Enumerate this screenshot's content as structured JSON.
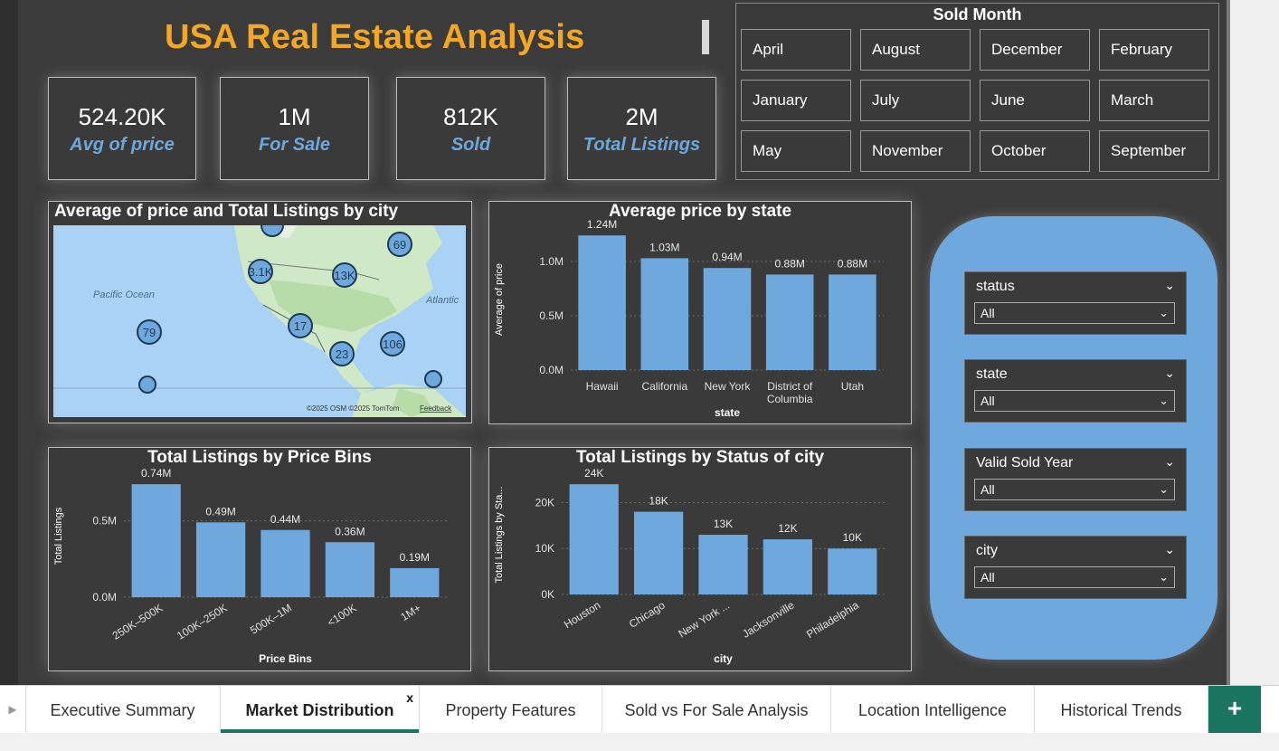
{
  "header": {
    "title": "USA Real Estate Analysis"
  },
  "kpis": [
    {
      "value": "524.20K",
      "label": "Avg of price"
    },
    {
      "value": "1M",
      "label": "For Sale"
    },
    {
      "value": "812K",
      "label": "Sold"
    },
    {
      "value": "2M",
      "label": "Total Listings"
    }
  ],
  "sold_month": {
    "title": "Sold Month",
    "months": [
      "April",
      "August",
      "December",
      "February",
      "January",
      "July",
      "June",
      "March",
      "May",
      "November",
      "October",
      "September"
    ]
  },
  "map_panel": {
    "title": "Average of price and Total Listings by city",
    "ocean_labels": [
      "Pacific Ocean",
      "Atlantic"
    ],
    "bubbles": [
      "69",
      "3.1K",
      "13K",
      "17",
      "79",
      "106",
      "23"
    ],
    "attribution": "©2025 OSM  ©2025 TomTom",
    "feedback": "Feedback"
  },
  "filters": [
    {
      "label": "status",
      "value": "All"
    },
    {
      "label": "state",
      "value": "All"
    },
    {
      "label": "Valid Sold Year",
      "value": "All"
    },
    {
      "label": "city",
      "value": "All"
    }
  ],
  "chart_data": [
    {
      "type": "bar",
      "title": "Average price by state",
      "xlabel": "state",
      "ylabel": "Average of price",
      "categories": [
        "Hawaii",
        "California",
        "New York",
        "District of Columbia",
        "Utah"
      ],
      "values": [
        1240000,
        1030000,
        940000,
        880000,
        880000
      ],
      "data_labels": [
        "1.24M",
        "1.03M",
        "0.94M",
        "0.88M",
        "0.88M"
      ],
      "yticks": [
        "0.0M",
        "0.5M",
        "1.0M"
      ],
      "ylim": [
        0,
        1300000
      ]
    },
    {
      "type": "bar",
      "title": "Total Listings by Price Bins",
      "xlabel": "Price Bins",
      "ylabel": "Total Listings",
      "categories": [
        "250K–500K",
        "100K–250K",
        "500K–1M",
        "<100K",
        "1M+"
      ],
      "values": [
        740000,
        490000,
        440000,
        360000,
        190000
      ],
      "data_labels": [
        "0.74M",
        "0.49M",
        "0.44M",
        "0.36M",
        "0.19M"
      ],
      "yticks": [
        "0.0M",
        "0.5M"
      ],
      "ylim": [
        0,
        800000
      ]
    },
    {
      "type": "bar",
      "title": "Total Listings by Status of city",
      "xlabel": "city",
      "ylabel": "Total Listings by Sta...",
      "categories": [
        "Houston",
        "Chicago",
        "New York ...",
        "Jacksonville",
        "Philadelphia"
      ],
      "values": [
        24000,
        18000,
        13000,
        12000,
        10000
      ],
      "data_labels": [
        "24K",
        "18K",
        "13K",
        "12K",
        "10K"
      ],
      "yticks": [
        "0K",
        "10K",
        "20K"
      ],
      "ylim": [
        0,
        26000
      ]
    }
  ],
  "tabs": [
    {
      "label": "Executive Summary"
    },
    {
      "label": "Market Distribution"
    },
    {
      "label": "Property Features"
    },
    {
      "label": "Sold vs For Sale Analysis"
    },
    {
      "label": "Location Intelligence"
    },
    {
      "label": "Historical Trends"
    }
  ],
  "tab_controls": {
    "close": "x",
    "add": "+"
  },
  "colors": {
    "bar": "#6fa8dc",
    "title": "#f5a623",
    "accent": "#1b7561",
    "panel": "#3a3a3a"
  }
}
